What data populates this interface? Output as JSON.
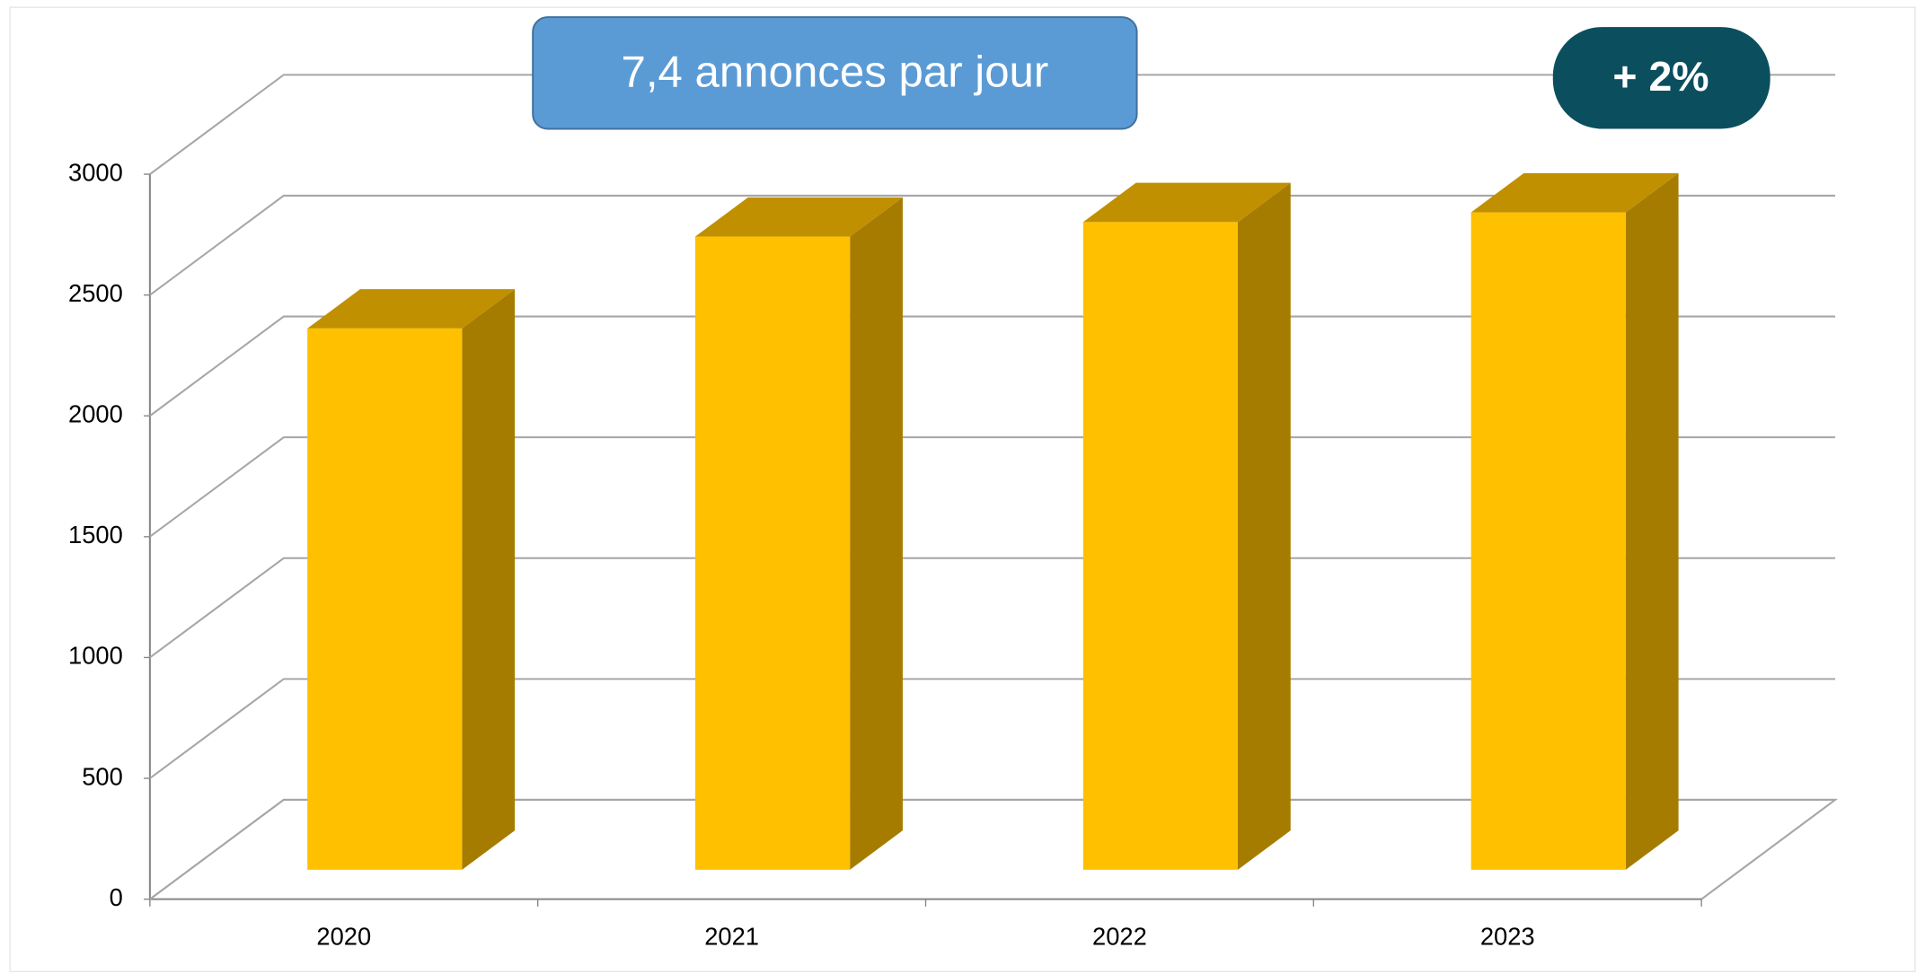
{
  "chart_data": {
    "type": "bar3d",
    "annotations": [
      "7,4  annonces par jour",
      "+ 2%"
    ],
    "categories": [
      "2020",
      "2021",
      "2022",
      "2023"
    ],
    "values": [
      2240,
      2620,
      2680,
      2720
    ],
    "color": "#ffc000",
    "top_color": "#c09000",
    "side_color": "#a67c00",
    "ylim": [
      0,
      3000
    ],
    "yticks": [
      0,
      500,
      1000,
      1500,
      2000,
      2500,
      3000
    ],
    "grid": true
  }
}
